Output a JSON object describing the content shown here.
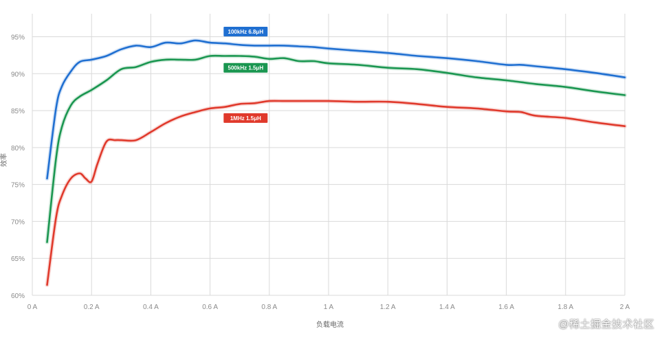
{
  "chart_data": {
    "type": "line",
    "xlabel": "负载电流",
    "ylabel": "效率",
    "xlim": [
      0,
      2
    ],
    "ylim": [
      60,
      97
    ],
    "x_ticks": [
      {
        "value": 0,
        "label": "0 A"
      },
      {
        "value": 0.2,
        "label": "0.2 A"
      },
      {
        "value": 0.4,
        "label": "0.4 A"
      },
      {
        "value": 0.6,
        "label": "0.6 A"
      },
      {
        "value": 0.8,
        "label": "0.8 A"
      },
      {
        "value": 1.0,
        "label": "1 A"
      },
      {
        "value": 1.2,
        "label": "1.2 A"
      },
      {
        "value": 1.4,
        "label": "1.4 A"
      },
      {
        "value": 1.6,
        "label": "1.6 A"
      },
      {
        "value": 1.8,
        "label": "1.8 A"
      },
      {
        "value": 2.0,
        "label": "2 A"
      }
    ],
    "y_ticks": [
      {
        "value": 60,
        "label": "60%"
      },
      {
        "value": 65,
        "label": "65%"
      },
      {
        "value": 70,
        "label": "70%"
      },
      {
        "value": 75,
        "label": "75%"
      },
      {
        "value": 80,
        "label": "80%"
      },
      {
        "value": 85,
        "label": "85%"
      },
      {
        "value": 90,
        "label": "90%"
      },
      {
        "value": 95,
        "label": "95%"
      }
    ],
    "grid": true,
    "series": [
      {
        "name": "100kHz 6.8μH",
        "color": "#1f6fd1",
        "label_anchor": {
          "x": 0.72,
          "y": 95.7
        },
        "x": [
          0.05,
          0.08,
          0.1,
          0.13,
          0.16,
          0.2,
          0.25,
          0.3,
          0.35,
          0.4,
          0.45,
          0.5,
          0.55,
          0.6,
          0.65,
          0.7,
          0.75,
          0.8,
          0.85,
          0.9,
          0.95,
          1.0,
          1.1,
          1.2,
          1.3,
          1.4,
          1.5,
          1.6,
          1.65,
          1.7,
          1.8,
          1.9,
          2.0
        ],
        "y": [
          75.8,
          85.3,
          88.3,
          90.3,
          91.6,
          91.9,
          92.4,
          93.3,
          93.8,
          93.6,
          94.2,
          94.1,
          94.5,
          94.2,
          94.1,
          93.9,
          93.8,
          93.8,
          93.8,
          93.7,
          93.6,
          93.4,
          93.1,
          92.8,
          92.4,
          92.1,
          91.7,
          91.2,
          91.2,
          91.0,
          90.6,
          90.1,
          89.5
        ]
      },
      {
        "name": "500kHz 1.5μH",
        "color": "#1a9650",
        "label_anchor": {
          "x": 0.72,
          "y": 90.8
        },
        "x": [
          0.05,
          0.08,
          0.1,
          0.13,
          0.16,
          0.2,
          0.25,
          0.3,
          0.35,
          0.4,
          0.45,
          0.5,
          0.55,
          0.6,
          0.65,
          0.7,
          0.75,
          0.8,
          0.85,
          0.9,
          0.95,
          1.0,
          1.1,
          1.2,
          1.3,
          1.4,
          1.5,
          1.6,
          1.7,
          1.8,
          1.9,
          2.0
        ],
        "y": [
          67.2,
          78.5,
          82.8,
          85.7,
          86.9,
          87.8,
          89.1,
          90.6,
          90.9,
          91.6,
          91.9,
          91.9,
          91.9,
          92.4,
          92.4,
          92.4,
          92.3,
          92.0,
          92.1,
          91.7,
          91.7,
          91.4,
          91.2,
          90.8,
          90.6,
          90.1,
          89.5,
          89.1,
          88.6,
          88.2,
          87.6,
          87.1
        ]
      },
      {
        "name": "1MHz 1.5μH",
        "color": "#e0392b",
        "label_anchor": {
          "x": 0.72,
          "y": 84.0
        },
        "x": [
          0.05,
          0.08,
          0.1,
          0.13,
          0.16,
          0.18,
          0.2,
          0.22,
          0.25,
          0.28,
          0.3,
          0.35,
          0.4,
          0.45,
          0.5,
          0.55,
          0.6,
          0.65,
          0.7,
          0.75,
          0.8,
          0.85,
          0.9,
          1.0,
          1.1,
          1.2,
          1.3,
          1.4,
          1.5,
          1.6,
          1.65,
          1.7,
          1.8,
          1.9,
          2.0
        ],
        "y": [
          61.4,
          70.5,
          73.5,
          75.8,
          76.5,
          75.8,
          75.4,
          77.8,
          80.8,
          81.0,
          81.0,
          81.0,
          82.1,
          83.3,
          84.2,
          84.8,
          85.3,
          85.5,
          85.9,
          86.0,
          86.3,
          86.3,
          86.3,
          86.3,
          86.2,
          86.2,
          85.9,
          85.5,
          85.3,
          84.9,
          84.8,
          84.3,
          84.0,
          83.4,
          82.9
        ]
      }
    ]
  },
  "watermark": "@稀土掘金技术社区"
}
